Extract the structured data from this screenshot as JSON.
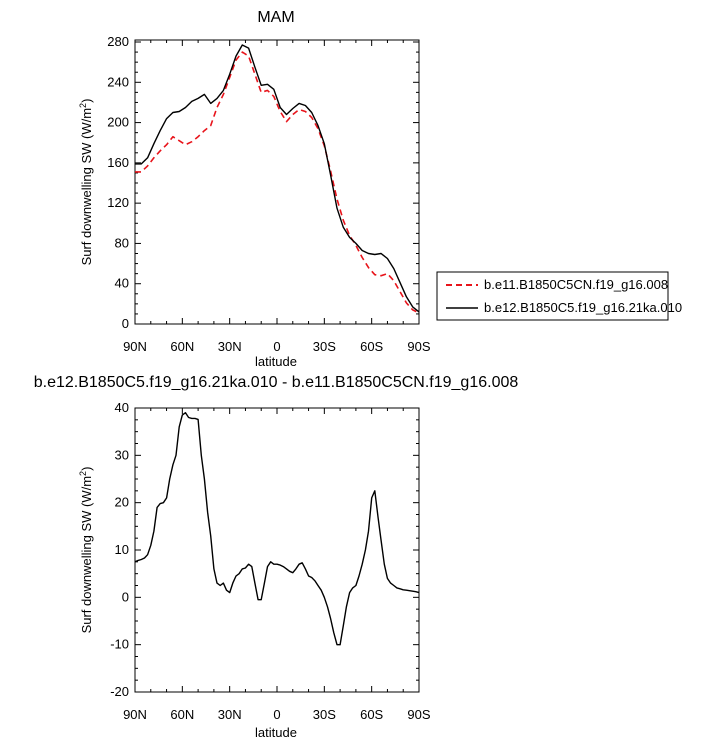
{
  "chart_data": [
    {
      "type": "line",
      "title": "MAM",
      "xlabel": "latitude",
      "ylabel_main": "Surf downwelling SW (W/m",
      "ylabel_sup": "2",
      "ylabel_close": ")",
      "xticks": [
        {
          "value": 90,
          "label": "90N"
        },
        {
          "value": 60,
          "label": "60N"
        },
        {
          "value": 30,
          "label": "30N"
        },
        {
          "value": 0,
          "label": "0"
        },
        {
          "value": -30,
          "label": "30S"
        },
        {
          "value": -60,
          "label": "60S"
        },
        {
          "value": -90,
          "label": "90S"
        }
      ],
      "yticks": [
        0,
        40,
        80,
        120,
        160,
        200,
        240,
        280
      ],
      "xlim": [
        90,
        -90
      ],
      "ylim": [
        0,
        282
      ],
      "legend_position": "right",
      "series": [
        {
          "name": "b.e11.B1850C5CN.f19_g16.008",
          "color": "#e8141b",
          "dash": "dashed",
          "x": [
            90,
            86,
            82,
            78,
            74,
            70,
            66,
            62,
            58,
            54,
            50,
            46,
            42,
            38,
            34,
            30,
            26,
            22,
            18,
            14,
            10,
            6,
            2,
            -2,
            -6,
            -10,
            -14,
            -18,
            -22,
            -26,
            -30,
            -34,
            -38,
            -42,
            -46,
            -50,
            -54,
            -58,
            -62,
            -66,
            -70,
            -74,
            -78,
            -82,
            -86,
            -90
          ],
          "y": [
            151,
            151,
            157,
            165,
            172,
            178,
            186,
            182,
            178,
            181,
            186,
            192,
            197,
            215,
            228,
            245,
            262,
            270,
            266,
            248,
            230,
            232,
            226,
            211,
            201,
            208,
            213,
            211,
            205,
            194,
            177,
            152,
            124,
            103,
            88,
            78,
            66,
            56,
            49,
            48,
            50,
            43,
            32,
            21,
            14,
            11
          ]
        },
        {
          "name": "b.e12.B1850C5.f19_g16.21ka.010",
          "color": "#000000",
          "dash": "solid",
          "x": [
            90,
            86,
            82,
            78,
            74,
            70,
            66,
            62,
            58,
            54,
            50,
            46,
            42,
            38,
            34,
            30,
            26,
            22,
            18,
            14,
            10,
            6,
            2,
            -2,
            -6,
            -10,
            -14,
            -18,
            -22,
            -26,
            -30,
            -34,
            -38,
            -42,
            -46,
            -50,
            -54,
            -58,
            -62,
            -66,
            -70,
            -74,
            -78,
            -82,
            -86,
            -90
          ],
          "y": [
            159,
            159,
            165,
            179,
            192,
            204,
            210,
            211,
            215,
            221,
            224,
            228,
            219,
            224,
            232,
            248,
            266,
            277,
            274,
            255,
            237,
            238,
            233,
            215,
            208,
            214,
            219,
            217,
            210,
            197,
            179,
            148,
            115,
            96,
            86,
            80,
            73,
            70,
            69,
            70,
            65,
            55,
            41,
            27,
            17,
            12
          ]
        }
      ]
    },
    {
      "type": "line",
      "title": "b.e12.B1850C5.f19_g16.21ka.010 - b.e11.B1850C5CN.f19_g16.008",
      "xlabel": "latitude",
      "ylabel_main": "Surf downwelling SW (W/m",
      "ylabel_sup": "2",
      "ylabel_close": ")",
      "xticks": [
        {
          "value": 90,
          "label": "90N"
        },
        {
          "value": 60,
          "label": "60N"
        },
        {
          "value": 30,
          "label": "30N"
        },
        {
          "value": 0,
          "label": "0"
        },
        {
          "value": -30,
          "label": "30S"
        },
        {
          "value": -60,
          "label": "60S"
        },
        {
          "value": -90,
          "label": "90S"
        }
      ],
      "yticks": [
        -20,
        -10,
        0,
        10,
        20,
        30,
        40
      ],
      "xlim": [
        90,
        -90
      ],
      "ylim": [
        -20,
        40
      ],
      "series": [
        {
          "color": "#000000",
          "dash": "solid",
          "x": [
            90,
            88,
            86,
            84,
            82,
            80,
            78,
            76,
            74,
            72,
            70,
            68,
            66,
            64,
            62,
            60,
            58,
            56,
            54,
            52,
            50,
            48,
            46,
            44,
            42,
            40,
            38,
            36,
            34,
            32,
            30,
            28,
            26,
            24,
            22,
            20,
            18,
            16,
            14,
            12,
            10,
            8,
            6,
            4,
            2,
            0,
            -2,
            -4,
            -6,
            -8,
            -10,
            -12,
            -14,
            -16,
            -18,
            -20,
            -22,
            -24,
            -26,
            -28,
            -30,
            -32,
            -34,
            -36,
            -38,
            -40,
            -42,
            -44,
            -46,
            -48,
            -50,
            -52,
            -54,
            -56,
            -58,
            -60,
            -62,
            -64,
            -66,
            -68,
            -70,
            -72,
            -74,
            -76,
            -78,
            -80,
            -82,
            -84,
            -86,
            -88,
            -90
          ],
          "y": [
            7.5,
            7.8,
            8,
            8.3,
            9,
            11,
            14,
            19,
            19.8,
            20,
            21,
            25,
            28,
            30,
            36,
            38.5,
            39,
            38,
            37.8,
            37.8,
            37.6,
            30,
            25,
            18,
            13,
            6,
            3,
            2.5,
            3,
            1.5,
            1,
            3,
            4.5,
            5,
            6,
            6.2,
            7,
            6.5,
            3,
            -0.5,
            -0.5,
            3,
            6.5,
            7.5,
            7,
            7,
            6.8,
            6.5,
            6,
            5.5,
            5.2,
            6,
            7,
            7.3,
            6,
            4.5,
            4.2,
            3.5,
            2.5,
            1.5,
            0,
            -2,
            -4.5,
            -7.5,
            -10,
            -10,
            -6,
            -2,
            1,
            2,
            2.5,
            4.5,
            7,
            10,
            14,
            21,
            22.5,
            17,
            12,
            7,
            4,
            3,
            2.5,
            2,
            1.8,
            1.6,
            1.5,
            1.4,
            1.3,
            1.2,
            1
          ]
        }
      ]
    }
  ],
  "legend": {
    "items": [
      {
        "label": "b.e11.B1850C5CN.f19_g16.008",
        "style": "dashed",
        "color": "#e8141b"
      },
      {
        "label": "b.e12.B1850C5.f19_g16.21ka.010",
        "style": "solid",
        "color": "#000000"
      }
    ]
  }
}
